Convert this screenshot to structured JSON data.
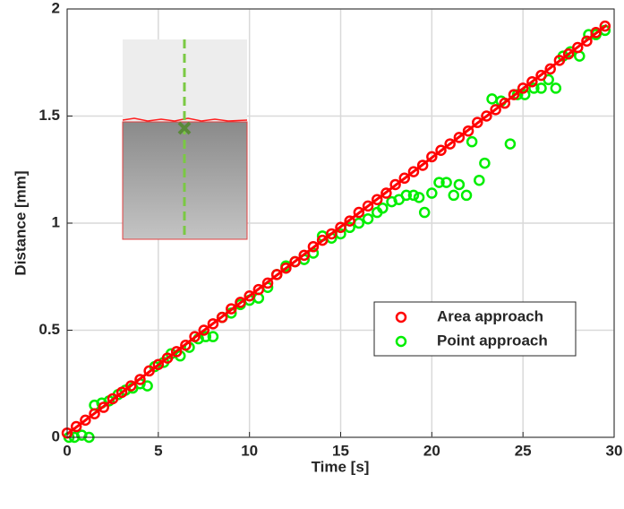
{
  "chart_data": {
    "type": "scatter",
    "xlabel": "Time [s]",
    "ylabel": "Distance [mm]",
    "xlim": [
      0,
      30
    ],
    "ylim": [
      0,
      2
    ],
    "xticks": [
      0,
      5,
      10,
      15,
      20,
      25,
      30
    ],
    "yticks": [
      0,
      0.5,
      1,
      1.5,
      2
    ],
    "grid": true,
    "legend_loc": "lower right",
    "series": [
      {
        "name": "Area approach",
        "color": "#ff0000",
        "x": [
          0,
          0.5,
          1,
          1.5,
          2,
          2.5,
          3,
          3.5,
          4,
          4.5,
          5,
          5.5,
          6,
          6.5,
          7,
          7.5,
          8,
          8.5,
          9,
          9.5,
          10,
          10.5,
          11,
          11.5,
          12,
          12.5,
          13,
          13.5,
          14,
          14.5,
          15,
          15.5,
          16,
          16.5,
          17,
          17.5,
          18,
          18.5,
          19,
          19.5,
          20,
          20.5,
          21,
          21.5,
          22,
          22.5,
          23,
          23.5,
          24,
          24.5,
          25,
          25.5,
          26,
          26.5,
          27,
          27.5,
          28,
          28.5,
          29,
          29.5
        ],
        "values": [
          0.02,
          0.05,
          0.08,
          0.11,
          0.14,
          0.18,
          0.21,
          0.24,
          0.27,
          0.31,
          0.34,
          0.37,
          0.4,
          0.43,
          0.47,
          0.5,
          0.53,
          0.56,
          0.6,
          0.63,
          0.66,
          0.69,
          0.72,
          0.76,
          0.79,
          0.82,
          0.85,
          0.89,
          0.92,
          0.95,
          0.98,
          1.01,
          1.05,
          1.08,
          1.11,
          1.14,
          1.18,
          1.21,
          1.24,
          1.27,
          1.31,
          1.34,
          1.37,
          1.4,
          1.43,
          1.47,
          1.5,
          1.53,
          1.56,
          1.6,
          1.63,
          1.66,
          1.69,
          1.72,
          1.76,
          1.79,
          1.82,
          1.85,
          1.89,
          1.92
        ]
      },
      {
        "name": "Point approach",
        "color": "#00ee00",
        "x": [
          0.1,
          0.4,
          0.8,
          1.2,
          1.5,
          1.9,
          2.3,
          2.8,
          3.2,
          3.6,
          4,
          4.4,
          4.8,
          5.3,
          5.7,
          6.2,
          6.7,
          7.2,
          7.6,
          8,
          8.5,
          9,
          9.5,
          10,
          10.5,
          11,
          11.5,
          12,
          12.5,
          13,
          13.5,
          14,
          14.5,
          15,
          15.5,
          16,
          16.5,
          17,
          17.3,
          17.8,
          18.2,
          18.6,
          19,
          19.3,
          19.6,
          20,
          20.4,
          20.8,
          21.2,
          21.5,
          21.9,
          22.2,
          22.6,
          22.9,
          23.3,
          23.8,
          24.3,
          24.7,
          25.1,
          25.6,
          26,
          26.4,
          26.8,
          27.2,
          27.6,
          28.1,
          28.6,
          29,
          29.5
        ],
        "values": [
          0,
          0,
          0.01,
          0,
          0.15,
          0.16,
          0.17,
          0.2,
          0.22,
          0.23,
          0.25,
          0.24,
          0.33,
          0.35,
          0.39,
          0.38,
          0.42,
          0.46,
          0.47,
          0.47,
          0.56,
          0.58,
          0.62,
          0.64,
          0.65,
          0.7,
          0.76,
          0.8,
          0.82,
          0.83,
          0.86,
          0.94,
          0.93,
          0.95,
          0.98,
          1.0,
          1.02,
          1.05,
          1.07,
          1.1,
          1.11,
          1.13,
          1.13,
          1.12,
          1.05,
          1.14,
          1.19,
          1.19,
          1.13,
          1.18,
          1.13,
          1.38,
          1.2,
          1.28,
          1.58,
          1.57,
          1.37,
          1.6,
          1.6,
          1.63,
          1.63,
          1.67,
          1.63,
          1.78,
          1.8,
          1.78,
          1.88,
          1.88,
          1.9
        ]
      }
    ],
    "fit": {
      "color": "#ff0000",
      "x": [
        0,
        29.6
      ],
      "values": [
        0.015,
        1.925
      ]
    }
  }
}
